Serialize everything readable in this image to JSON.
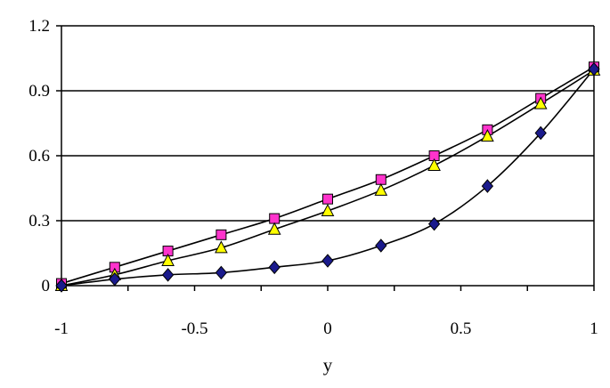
{
  "chart_data": {
    "type": "line",
    "title": "",
    "xlabel": "y",
    "ylabel": "",
    "xlim": [
      -1,
      1
    ],
    "ylim": [
      0,
      1.2
    ],
    "x_ticks": [
      "-1",
      "-0.5",
      "0",
      "0.5",
      "1"
    ],
    "y_ticks": [
      "0",
      "0.3",
      "0.6",
      "0.9",
      "1.2"
    ],
    "grid": "horizontal",
    "legend": "none",
    "x": [
      -1,
      -0.8,
      -0.6,
      -0.4,
      -0.2,
      0,
      0.2,
      0.4,
      0.6,
      0.8,
      1
    ],
    "series": [
      {
        "marker": "square",
        "color": "#ff33cc",
        "values": [
          0.01,
          0.085,
          0.16,
          0.235,
          0.31,
          0.4,
          0.49,
          0.6,
          0.72,
          0.865,
          1.01
        ]
      },
      {
        "marker": "triangle",
        "color": "#ffff00",
        "values": [
          0.0,
          0.05,
          0.115,
          0.175,
          0.26,
          0.345,
          0.44,
          0.555,
          0.69,
          0.84,
          0.995
        ]
      },
      {
        "marker": "diamond",
        "color": "#1a1a8c",
        "values": [
          0.0,
          0.03,
          0.05,
          0.06,
          0.085,
          0.115,
          0.185,
          0.285,
          0.46,
          0.705,
          1.0
        ]
      }
    ]
  }
}
